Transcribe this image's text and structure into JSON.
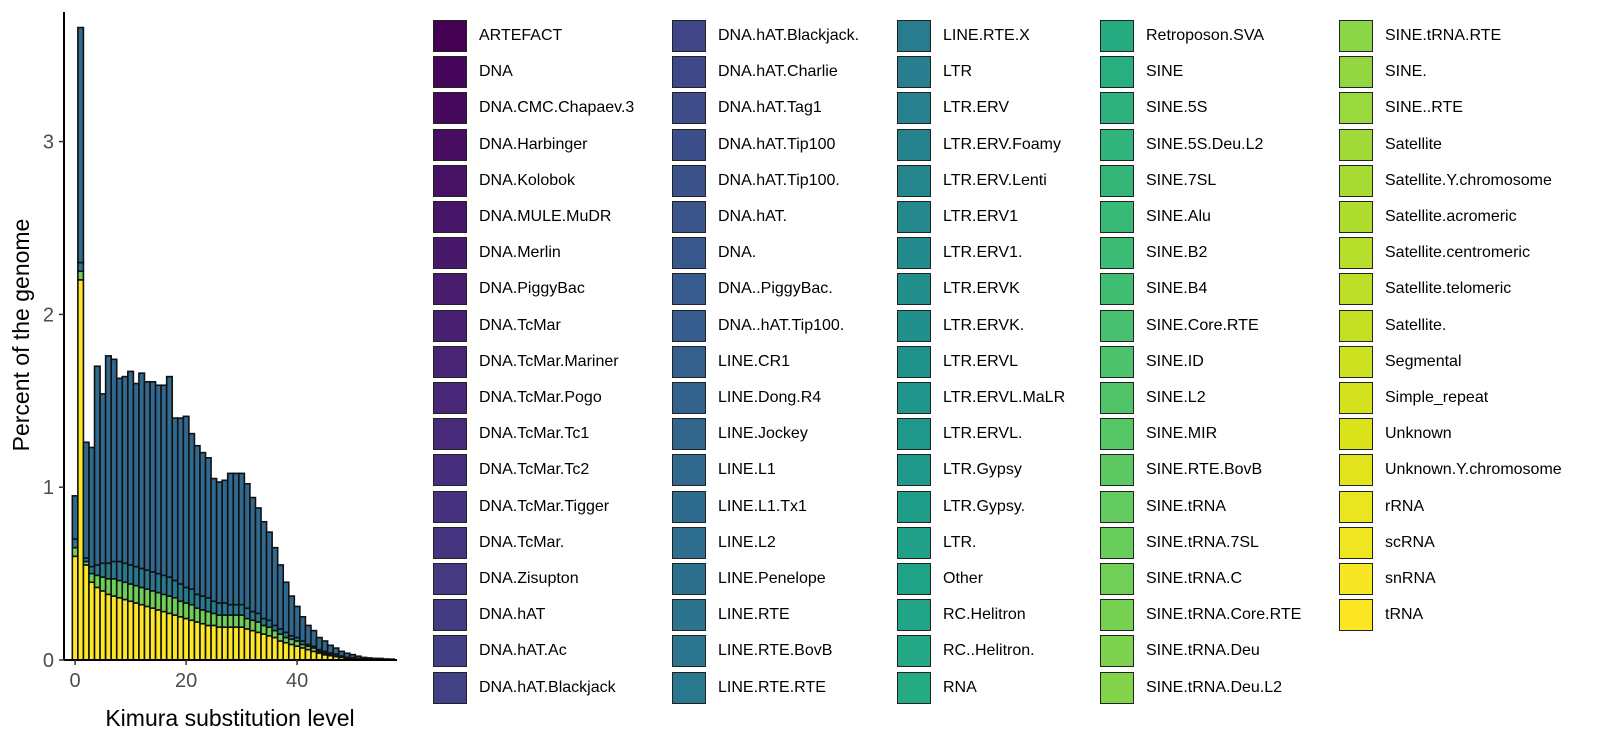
{
  "chart_data": {
    "type": "bar",
    "stacked": true,
    "title": "",
    "xlabel": "Kimura substitution level",
    "ylabel": "Percent of the genome",
    "xlim": [
      -2,
      58
    ],
    "ylim": [
      0,
      3.75
    ],
    "xticks": [
      0,
      20,
      40
    ],
    "yticks": [
      0,
      1,
      2,
      3
    ],
    "grid": false,
    "legend_position": "right",
    "bins": [
      0,
      1,
      2,
      3,
      4,
      5,
      6,
      7,
      8,
      9,
      10,
      11,
      12,
      13,
      14,
      15,
      16,
      17,
      18,
      19,
      20,
      21,
      22,
      23,
      24,
      25,
      26,
      27,
      28,
      29,
      30,
      31,
      32,
      33,
      34,
      35,
      36,
      37,
      38,
      39,
      40,
      41,
      42,
      43,
      44,
      45,
      46,
      47,
      48,
      49,
      50,
      51,
      52,
      53,
      54,
      55,
      56,
      57
    ],
    "series": [
      {
        "name": "tRNA",
        "color": "#fde725",
        "values": [
          0.6,
          2.2,
          0.55,
          0.45,
          0.42,
          0.4,
          0.38,
          0.37,
          0.36,
          0.35,
          0.34,
          0.33,
          0.32,
          0.31,
          0.3,
          0.29,
          0.28,
          0.27,
          0.26,
          0.25,
          0.24,
          0.23,
          0.22,
          0.21,
          0.2,
          0.2,
          0.19,
          0.19,
          0.19,
          0.19,
          0.19,
          0.18,
          0.17,
          0.16,
          0.15,
          0.14,
          0.13,
          0.11,
          0.1,
          0.09,
          0.08,
          0.07,
          0.06,
          0.05,
          0.04,
          0.03,
          0.025,
          0.02,
          0.015,
          0.01,
          0.008,
          0.006,
          0.004,
          0.003,
          0.002,
          0.002,
          0.001,
          0.001
        ]
      },
      {
        "name": "SINE.tRNA.Deu.L2",
        "color": "#6ece58",
        "values": [
          0.05,
          0.05,
          0.02,
          0.05,
          0.07,
          0.08,
          0.09,
          0.1,
          0.1,
          0.1,
          0.1,
          0.1,
          0.1,
          0.1,
          0.1,
          0.1,
          0.1,
          0.1,
          0.1,
          0.09,
          0.09,
          0.09,
          0.08,
          0.08,
          0.08,
          0.07,
          0.07,
          0.07,
          0.07,
          0.07,
          0.07,
          0.06,
          0.06,
          0.06,
          0.05,
          0.05,
          0.04,
          0.04,
          0.03,
          0.03,
          0.03,
          0.02,
          0.02,
          0.02,
          0.01,
          0.01,
          0.01,
          0.01,
          0.005,
          0.004,
          0.003,
          0.002,
          0.001,
          0.001,
          0.001,
          0.0005,
          0.0005,
          0.0005
        ]
      },
      {
        "name": "LTR.",
        "color": "#2a788e",
        "values": [
          0.05,
          0.05,
          0.02,
          0.04,
          0.06,
          0.08,
          0.09,
          0.1,
          0.11,
          0.11,
          0.11,
          0.11,
          0.11,
          0.11,
          0.11,
          0.11,
          0.11,
          0.11,
          0.1,
          0.1,
          0.09,
          0.09,
          0.08,
          0.08,
          0.08,
          0.07,
          0.07,
          0.07,
          0.06,
          0.06,
          0.06,
          0.06,
          0.05,
          0.05,
          0.04,
          0.04,
          0.03,
          0.03,
          0.03,
          0.02,
          0.02,
          0.02,
          0.01,
          0.01,
          0.01,
          0.01,
          0.005,
          0.004,
          0.003,
          0.002,
          0.002,
          0.001,
          0.001,
          0.001,
          0.0005,
          0.0005,
          0.0005,
          0.0005
        ]
      },
      {
        "name": "LINE.RTE.RTE",
        "color": "#31688e",
        "values": [
          0.25,
          1.36,
          0.67,
          0.69,
          1.15,
          0.98,
          1.2,
          1.17,
          1.06,
          1.08,
          1.12,
          1.06,
          1.13,
          1.09,
          1.1,
          1.09,
          1.1,
          1.16,
          0.94,
          0.96,
          0.99,
          0.9,
          0.86,
          0.83,
          0.81,
          0.71,
          0.7,
          0.71,
          0.76,
          0.76,
          0.76,
          0.72,
          0.66,
          0.61,
          0.56,
          0.51,
          0.45,
          0.37,
          0.29,
          0.23,
          0.18,
          0.14,
          0.11,
          0.09,
          0.07,
          0.06,
          0.045,
          0.035,
          0.027,
          0.023,
          0.018,
          0.013,
          0.009,
          0.007,
          0.006,
          0.006,
          0.004,
          0.003
        ]
      }
    ],
    "legend": {
      "columns": [
        [
          "ARTEFACT",
          "DNA",
          "DNA.CMC.Chapaev.3",
          "DNA.Harbinger",
          "DNA.Kolobok",
          "DNA.MULE.MuDR",
          "DNA.Merlin",
          "DNA.PiggyBac",
          "DNA.TcMar",
          "DNA.TcMar.Mariner",
          "DNA.TcMar.Pogo",
          "DNA.TcMar.Tc1",
          "DNA.TcMar.Tc2",
          "DNA.TcMar.Tigger",
          "DNA.TcMar.",
          "DNA.Zisupton",
          "DNA.hAT",
          "DNA.hAT.Ac",
          "DNA.hAT.Blackjack"
        ],
        [
          "DNA.hAT.Blackjack.",
          "DNA.hAT.Charlie",
          "DNA.hAT.Tag1",
          "DNA.hAT.Tip100",
          "DNA.hAT.Tip100.",
          "DNA.hAT.",
          "DNA.",
          "DNA..PiggyBac.",
          "DNA..hAT.Tip100.",
          "LINE.CR1",
          "LINE.Dong.R4",
          "LINE.Jockey",
          "LINE.L1",
          "LINE.L1.Tx1",
          "LINE.L2",
          "LINE.Penelope",
          "LINE.RTE",
          "LINE.RTE.BovB",
          "LINE.RTE.RTE"
        ],
        [
          "LINE.RTE.X",
          "LTR",
          "LTR.ERV",
          "LTR.ERV.Foamy",
          "LTR.ERV.Lenti",
          "LTR.ERV1",
          "LTR.ERV1.",
          "LTR.ERVK",
          "LTR.ERVK.",
          "LTR.ERVL",
          "LTR.ERVL.MaLR",
          "LTR.ERVL.",
          "LTR.Gypsy",
          "LTR.Gypsy.",
          "LTR.",
          "Other",
          "RC.Helitron",
          "RC..Helitron.",
          "RNA"
        ],
        [
          "Retroposon.SVA",
          "SINE",
          "SINE.5S",
          "SINE.5S.Deu.L2",
          "SINE.7SL",
          "SINE.Alu",
          "SINE.B2",
          "SINE.B4",
          "SINE.Core.RTE",
          "SINE.ID",
          "SINE.L2",
          "SINE.MIR",
          "SINE.RTE.BovB",
          "SINE.tRNA",
          "SINE.tRNA.7SL",
          "SINE.tRNA.C",
          "SINE.tRNA.Core.RTE",
          "SINE.tRNA.Deu",
          "SINE.tRNA.Deu.L2"
        ],
        [
          "SINE.tRNA.RTE",
          "SINE.",
          "SINE..RTE",
          "Satellite",
          "Satellite.Y.chromosome",
          "Satellite.acromeric",
          "Satellite.centromeric",
          "Satellite.telomeric",
          "Satellite.",
          "Segmental",
          "Simple_repeat",
          "Unknown",
          "Unknown.Y.chromosome",
          "rRNA",
          "scRNA",
          "snRNA",
          "tRNA"
        ]
      ],
      "palette": [
        "#440154",
        "#481567",
        "#482677",
        "#453781",
        "#404788",
        "#39568c",
        "#33638d",
        "#2d708e",
        "#287d8e",
        "#238a8d",
        "#1f968b",
        "#20a387",
        "#29af7f",
        "#3cbb75",
        "#55c667",
        "#73d055",
        "#95d840",
        "#b8de29",
        "#dce319",
        "#fde725"
      ]
    }
  }
}
